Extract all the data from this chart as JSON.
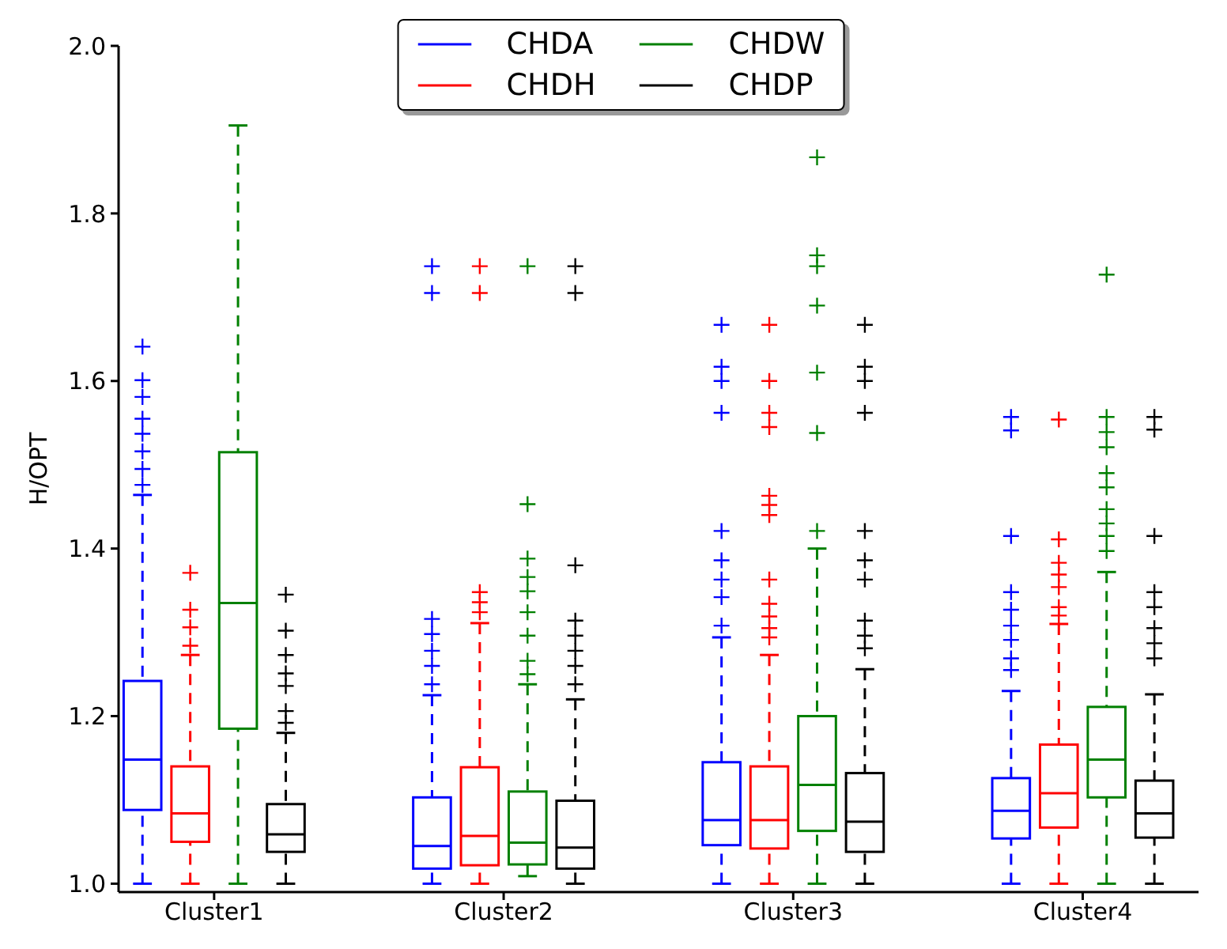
{
  "chart_data": {
    "type": "box",
    "ylabel": "H/OPT",
    "categories": [
      "Cluster1",
      "Cluster2",
      "Cluster3",
      "Cluster4"
    ],
    "ylim": [
      0.99,
      2.0
    ],
    "yticks": [
      {
        "value": 1.0,
        "label": "1.0"
      },
      {
        "value": 1.2,
        "label": "1.2"
      },
      {
        "value": 1.4,
        "label": "1.4"
      },
      {
        "value": 1.6,
        "label": "1.6"
      },
      {
        "value": 1.8,
        "label": "1.8"
      },
      {
        "value": 2.0,
        "label": "2.0"
      }
    ],
    "grid": false,
    "legend": "top",
    "marker": "cross",
    "line_style": "dashed",
    "series": [
      {
        "name": "CHDA",
        "color": "#0000ff",
        "boxes": [
          {
            "low": 1.0,
            "q1": 1.088,
            "median": 1.148,
            "q3": 1.242,
            "high": 1.464,
            "outliers": [
              1.476,
              1.495,
              1.516,
              1.537,
              1.555,
              1.581,
              1.601,
              1.641
            ]
          },
          {
            "low": 1.0,
            "q1": 1.018,
            "median": 1.045,
            "q3": 1.103,
            "high": 1.225,
            "outliers": [
              1.238,
              1.26,
              1.278,
              1.298,
              1.316,
              1.705,
              1.737
            ]
          },
          {
            "low": 1.0,
            "q1": 1.046,
            "median": 1.076,
            "q3": 1.145,
            "high": 1.294,
            "outliers": [
              1.308,
              1.342,
              1.363,
              1.386,
              1.421,
              1.562,
              1.6,
              1.617,
              1.667
            ]
          },
          {
            "low": 1.0,
            "q1": 1.054,
            "median": 1.087,
            "q3": 1.126,
            "high": 1.23,
            "outliers": [
              1.255,
              1.269,
              1.291,
              1.308,
              1.327,
              1.348,
              1.415,
              1.541,
              1.557
            ]
          }
        ]
      },
      {
        "name": "CHDH",
        "color": "#ff0000",
        "boxes": [
          {
            "low": 1.0,
            "q1": 1.05,
            "median": 1.084,
            "q3": 1.14,
            "high": 1.273,
            "outliers": [
              1.284,
              1.306,
              1.327,
              1.371
            ]
          },
          {
            "low": 1.0,
            "q1": 1.022,
            "median": 1.057,
            "q3": 1.139,
            "high": 1.311,
            "outliers": [
              1.324,
              1.336,
              1.348,
              1.705,
              1.737
            ]
          },
          {
            "low": 1.0,
            "q1": 1.042,
            "median": 1.076,
            "q3": 1.14,
            "high": 1.273,
            "outliers": [
              1.294,
              1.305,
              1.319,
              1.334,
              1.363,
              1.44,
              1.452,
              1.463,
              1.545,
              1.562,
              1.6,
              1.667
            ]
          },
          {
            "low": 1.0,
            "q1": 1.067,
            "median": 1.108,
            "q3": 1.166,
            "high": 1.31,
            "outliers": [
              1.32,
              1.33,
              1.354,
              1.369,
              1.383,
              1.411,
              1.554
            ]
          }
        ]
      },
      {
        "name": "CHDW",
        "color": "#008000",
        "boxes": [
          {
            "low": 1.0,
            "q1": 1.185,
            "median": 1.335,
            "q3": 1.515,
            "high": 1.905
          },
          {
            "low": 1.009,
            "q1": 1.023,
            "median": 1.049,
            "q3": 1.11,
            "high": 1.238,
            "outliers": [
              1.25,
              1.266,
              1.296,
              1.324,
              1.349,
              1.366,
              1.388,
              1.453,
              1.737
            ]
          },
          {
            "low": 1.0,
            "q1": 1.063,
            "median": 1.118,
            "q3": 1.2,
            "high": 1.4,
            "outliers": [
              1.421,
              1.538,
              1.61,
              1.69,
              1.737,
              1.75,
              1.867
            ]
          },
          {
            "low": 1.0,
            "q1": 1.103,
            "median": 1.148,
            "q3": 1.211,
            "high": 1.372,
            "outliers": [
              1.397,
              1.415,
              1.43,
              1.447,
              1.473,
              1.49,
              1.521,
              1.539,
              1.557,
              1.727
            ]
          }
        ]
      },
      {
        "name": "CHDP",
        "color": "#000000",
        "boxes": [
          {
            "low": 1.0,
            "q1": 1.038,
            "median": 1.059,
            "q3": 1.095,
            "high": 1.18,
            "outliers": [
              1.192,
              1.206,
              1.236,
              1.251,
              1.273,
              1.302,
              1.345
            ]
          },
          {
            "low": 1.0,
            "q1": 1.018,
            "median": 1.043,
            "q3": 1.099,
            "high": 1.22,
            "outliers": [
              1.238,
              1.26,
              1.278,
              1.296,
              1.314,
              1.38,
              1.705,
              1.737
            ]
          },
          {
            "low": 1.0,
            "q1": 1.038,
            "median": 1.074,
            "q3": 1.132,
            "high": 1.256,
            "outliers": [
              1.281,
              1.296,
              1.314,
              1.363,
              1.386,
              1.421,
              1.562,
              1.6,
              1.617,
              1.667
            ]
          },
          {
            "low": 1.0,
            "q1": 1.055,
            "median": 1.084,
            "q3": 1.123,
            "high": 1.226,
            "outliers": [
              1.269,
              1.287,
              1.305,
              1.33,
              1.348,
              1.415,
              1.542,
              1.557
            ]
          }
        ]
      }
    ]
  }
}
